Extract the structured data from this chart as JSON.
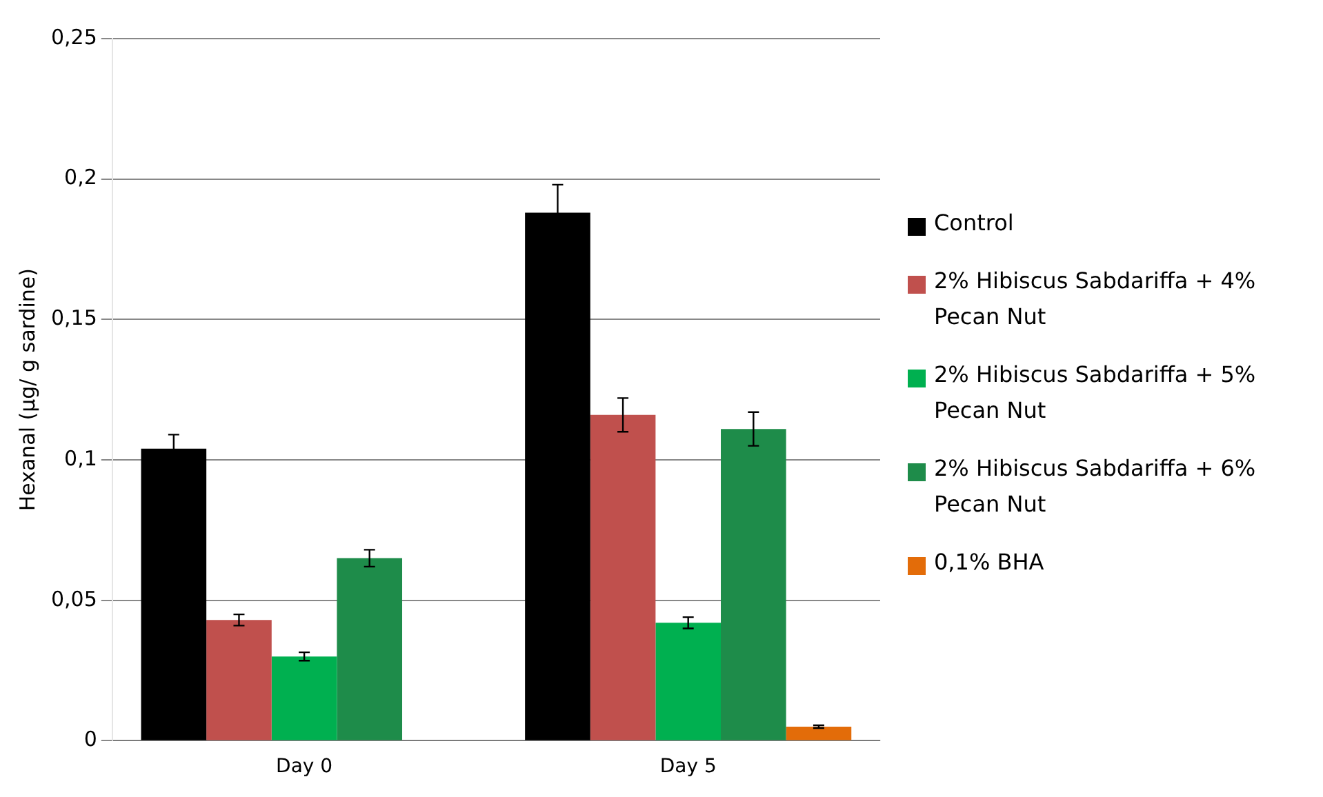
{
  "chart_data": {
    "type": "bar",
    "ylabel": "Hexanal (µg/ g sardine)",
    "categories": [
      "Day 0",
      "Day 5"
    ],
    "series": [
      {
        "name": "Control",
        "color": "#000000",
        "values": [
          0.104,
          0.188
        ],
        "errors": [
          0.005,
          0.01
        ]
      },
      {
        "name": "2% Hibiscus Sabdariffa + 4% Pecan Nut",
        "color": "#c0504d",
        "values": [
          0.043,
          0.116
        ],
        "errors": [
          0.002,
          0.006
        ]
      },
      {
        "name": "2% Hibiscus Sabdariffa + 5% Pecan Nut",
        "color": "#00b050",
        "values": [
          0.03,
          0.042
        ],
        "errors": [
          0.0015,
          0.002
        ]
      },
      {
        "name": "2% Hibiscus Sabdariffa + 6% Pecan Nut",
        "color": "#1e8c4a",
        "values": [
          0.065,
          0.111
        ],
        "errors": [
          0.003,
          0.006
        ]
      },
      {
        "name": "0,1% BHA",
        "color": "#e36c09",
        "values": [
          0,
          0.005
        ],
        "errors": [
          null,
          0.0005
        ]
      }
    ],
    "ylim": [
      0,
      0.25
    ],
    "yticks": [
      {
        "value": 0,
        "label": "0"
      },
      {
        "value": 0.05,
        "label": "0,05"
      },
      {
        "value": 0.1,
        "label": "0,1"
      },
      {
        "value": 0.15,
        "label": "0,15"
      },
      {
        "value": 0.2,
        "label": "0,2"
      },
      {
        "value": 0.25,
        "label": "0,25"
      }
    ],
    "grid": "y",
    "legend": "right"
  }
}
